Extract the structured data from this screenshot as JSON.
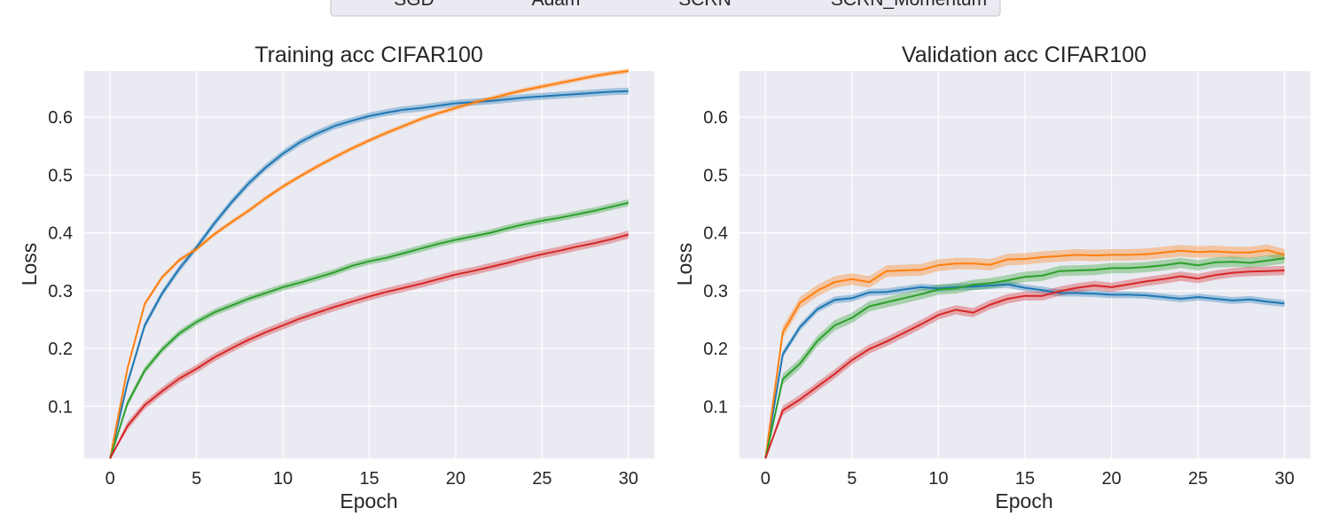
{
  "legend": {
    "entries": [
      {
        "name": "SGD",
        "color": "#1f77b4"
      },
      {
        "name": "Adam",
        "color": "#ff7f0e"
      },
      {
        "name": "SCRN",
        "color": "#2ca02c"
      },
      {
        "name": "SCRN_Momentum",
        "color": "#d62728"
      }
    ]
  },
  "chart_data": [
    {
      "type": "line",
      "title": "Training acc CIFAR100",
      "xlabel": "Epoch",
      "ylabel": "Loss",
      "xlim": [
        -1.5,
        31.5
      ],
      "ylim": [
        0.01,
        0.68
      ],
      "xticks": [
        0,
        5,
        10,
        15,
        20,
        25,
        30
      ],
      "yticks": [
        0.1,
        0.2,
        0.3,
        0.4,
        0.5,
        0.6
      ],
      "grid": true,
      "x": [
        0,
        1,
        2,
        3,
        4,
        5,
        6,
        7,
        8,
        9,
        10,
        11,
        12,
        13,
        14,
        15,
        16,
        17,
        18,
        19,
        20,
        21,
        22,
        23,
        24,
        25,
        26,
        27,
        28,
        29,
        30
      ],
      "series": [
        {
          "name": "SGD",
          "color": "#1f77b4",
          "band": 0.006,
          "values": [
            0.01,
            0.14,
            0.24,
            0.295,
            0.338,
            0.375,
            0.415,
            0.452,
            0.485,
            0.513,
            0.537,
            0.557,
            0.572,
            0.585,
            0.594,
            0.602,
            0.608,
            0.613,
            0.616,
            0.62,
            0.624,
            0.626,
            0.628,
            0.631,
            0.634,
            0.636,
            0.638,
            0.64,
            0.642,
            0.644,
            0.645
          ]
        },
        {
          "name": "Adam",
          "color": "#ff7f0e",
          "band": 0.004,
          "values": [
            0.01,
            0.165,
            0.277,
            0.323,
            0.353,
            0.372,
            0.397,
            0.418,
            0.438,
            0.46,
            0.48,
            0.498,
            0.515,
            0.531,
            0.546,
            0.56,
            0.573,
            0.585,
            0.597,
            0.607,
            0.616,
            0.625,
            0.632,
            0.64,
            0.647,
            0.653,
            0.659,
            0.665,
            0.671,
            0.676,
            0.68
          ]
        },
        {
          "name": "SCRN",
          "color": "#2ca02c",
          "band": 0.006,
          "values": [
            0.01,
            0.105,
            0.162,
            0.198,
            0.226,
            0.246,
            0.262,
            0.274,
            0.286,
            0.296,
            0.306,
            0.314,
            0.323,
            0.332,
            0.343,
            0.351,
            0.357,
            0.365,
            0.373,
            0.381,
            0.388,
            0.394,
            0.4,
            0.408,
            0.415,
            0.421,
            0.426,
            0.432,
            0.438,
            0.445,
            0.452
          ]
        },
        {
          "name": "SCRN_Momentum",
          "color": "#d62728",
          "band": 0.007,
          "values": [
            0.01,
            0.066,
            0.102,
            0.126,
            0.148,
            0.165,
            0.184,
            0.2,
            0.215,
            0.228,
            0.24,
            0.252,
            0.262,
            0.272,
            0.281,
            0.29,
            0.298,
            0.305,
            0.312,
            0.32,
            0.328,
            0.334,
            0.341,
            0.348,
            0.356,
            0.363,
            0.369,
            0.376,
            0.382,
            0.389,
            0.397
          ]
        }
      ]
    },
    {
      "type": "line",
      "title": "Validation acc CIFAR100",
      "xlabel": "Epoch",
      "ylabel": "Loss",
      "xlim": [
        -1.5,
        31.5
      ],
      "ylim": [
        0.01,
        0.68
      ],
      "xticks": [
        0,
        5,
        10,
        15,
        20,
        25,
        30
      ],
      "yticks": [
        0.1,
        0.2,
        0.3,
        0.4,
        0.5,
        0.6
      ],
      "grid": true,
      "x": [
        0,
        1,
        2,
        3,
        4,
        5,
        6,
        7,
        8,
        9,
        10,
        11,
        12,
        13,
        14,
        15,
        16,
        17,
        18,
        19,
        20,
        21,
        22,
        23,
        24,
        25,
        26,
        27,
        28,
        29,
        30
      ],
      "series": [
        {
          "name": "SGD",
          "color": "#1f77b4",
          "band": 0.006,
          "values": [
            0.01,
            0.19,
            0.237,
            0.268,
            0.284,
            0.287,
            0.297,
            0.298,
            0.302,
            0.306,
            0.304,
            0.306,
            0.307,
            0.309,
            0.311,
            0.305,
            0.301,
            0.296,
            0.296,
            0.295,
            0.293,
            0.293,
            0.292,
            0.289,
            0.286,
            0.289,
            0.286,
            0.283,
            0.285,
            0.281,
            0.278
          ]
        },
        {
          "name": "Adam",
          "color": "#ff7f0e",
          "band": 0.01,
          "values": [
            0.01,
            0.228,
            0.279,
            0.3,
            0.315,
            0.32,
            0.315,
            0.334,
            0.335,
            0.336,
            0.344,
            0.347,
            0.347,
            0.345,
            0.354,
            0.355,
            0.358,
            0.36,
            0.362,
            0.361,
            0.362,
            0.362,
            0.363,
            0.366,
            0.369,
            0.367,
            0.368,
            0.366,
            0.366,
            0.37,
            0.362
          ]
        },
        {
          "name": "SCRN",
          "color": "#2ca02c",
          "band": 0.009,
          "values": [
            0.01,
            0.147,
            0.174,
            0.213,
            0.24,
            0.253,
            0.273,
            0.28,
            0.287,
            0.294,
            0.302,
            0.304,
            0.31,
            0.313,
            0.318,
            0.324,
            0.326,
            0.334,
            0.335,
            0.336,
            0.339,
            0.339,
            0.341,
            0.344,
            0.348,
            0.344,
            0.349,
            0.35,
            0.348,
            0.352,
            0.356
          ]
        },
        {
          "name": "SCRN_Momentum",
          "color": "#d62728",
          "band": 0.008,
          "values": [
            0.01,
            0.093,
            0.112,
            0.134,
            0.156,
            0.18,
            0.199,
            0.212,
            0.227,
            0.242,
            0.258,
            0.267,
            0.262,
            0.276,
            0.286,
            0.291,
            0.291,
            0.299,
            0.305,
            0.309,
            0.306,
            0.311,
            0.316,
            0.32,
            0.325,
            0.321,
            0.327,
            0.331,
            0.333,
            0.334,
            0.335
          ]
        }
      ]
    }
  ]
}
